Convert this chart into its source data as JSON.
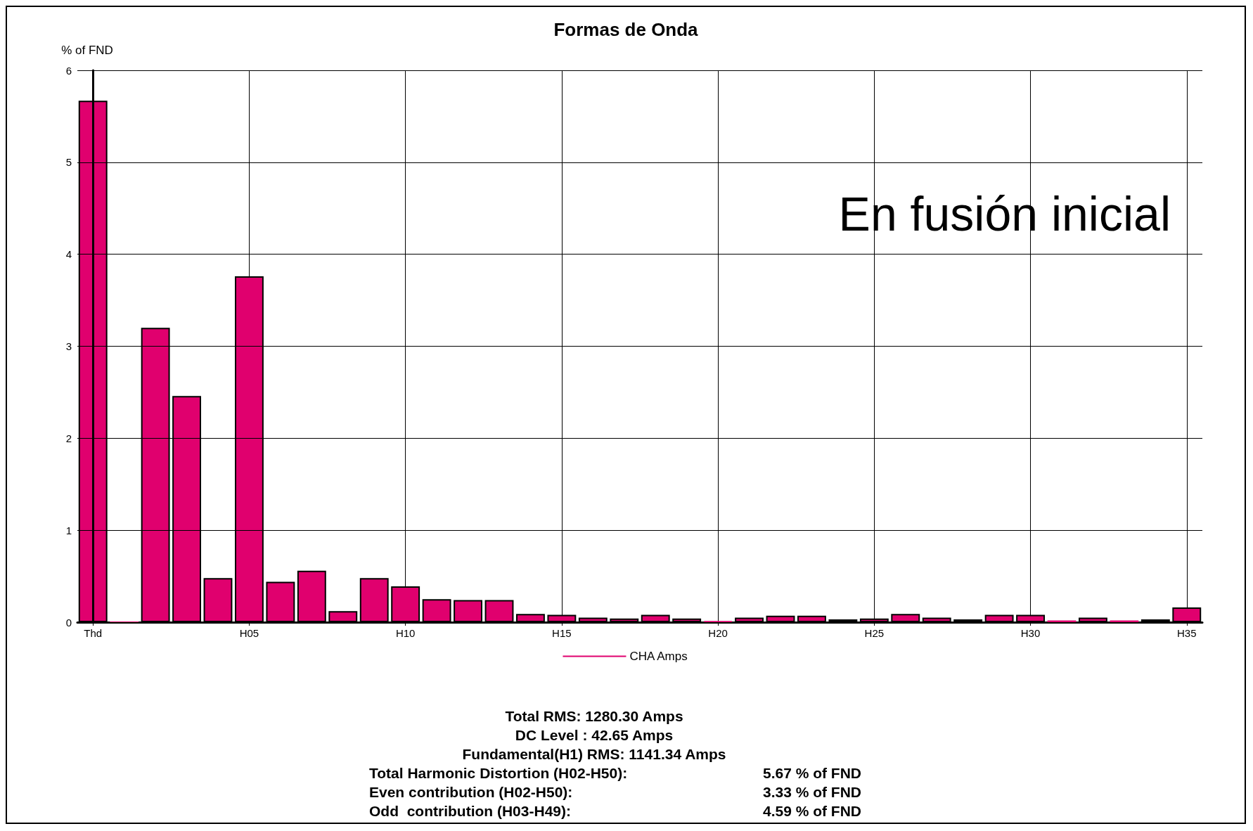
{
  "chart_data": {
    "type": "bar",
    "title": "Formas de Onda",
    "ylabel": "% of FND",
    "categories": [
      "Thd",
      null,
      null,
      null,
      null,
      "H05",
      null,
      null,
      null,
      null,
      "H10",
      null,
      null,
      null,
      null,
      "H15",
      null,
      null,
      null,
      null,
      "H20",
      null,
      null,
      null,
      null,
      "H25",
      null,
      null,
      null,
      null,
      "H30",
      null,
      null,
      null,
      null,
      "H35"
    ],
    "series": [
      {
        "name": "CHA Amps",
        "color": "#e0006e",
        "values": [
          5.67,
          0,
          3.2,
          2.46,
          0.48,
          3.76,
          0.44,
          0.56,
          0.12,
          0.48,
          0.39,
          0.25,
          0.24,
          0.24,
          0.09,
          0.08,
          0.05,
          0.04,
          0.08,
          0.04,
          0.01,
          0.05,
          0.07,
          0.07,
          0.03,
          0.04,
          0.09,
          0.05,
          0.03,
          0.08,
          0.08,
          0.02,
          0.05,
          0.02,
          0.03,
          0.16
        ]
      }
    ],
    "ylim": [
      0,
      6
    ],
    "yticks": [
      0,
      1,
      2,
      3,
      4,
      5,
      6
    ],
    "grid": true,
    "legend": "bottom",
    "annotations": [
      "En fusión inicial",
      "Total RMS: 1280.30 Amps",
      "DC Level : 42.65 Amps",
      "Fundamental(H1) RMS: 1141.34 Amps",
      "Total Harmonic Distortion (H02-H50):",
      "5.67 % of FND",
      "Even contribution (H02-H50):",
      "3.33 % of FND",
      "Odd  contribution (H03-H49):",
      "4.59 % of FND"
    ]
  }
}
